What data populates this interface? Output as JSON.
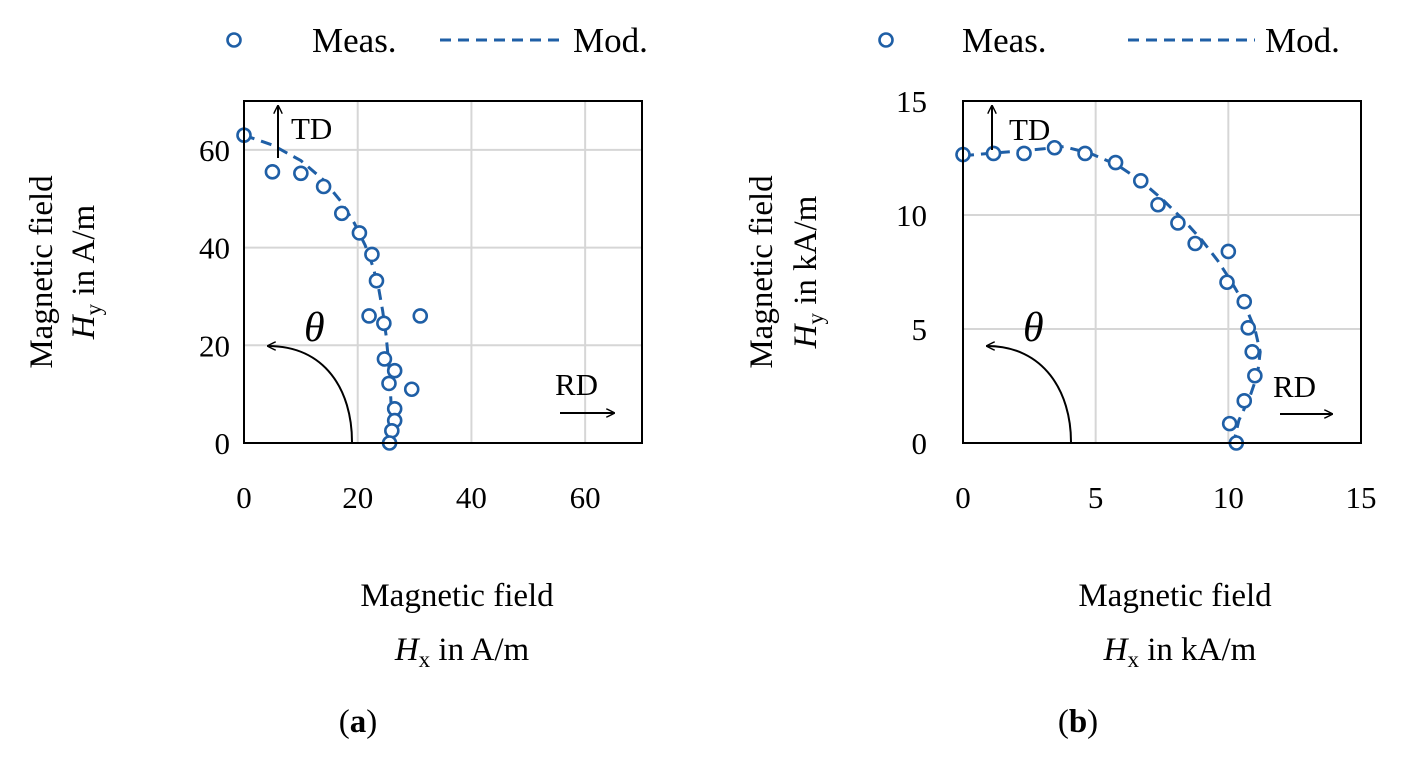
{
  "colors": {
    "series": "#1f5fa6",
    "grid": "#d6d6d6",
    "axis": "#000000"
  },
  "chart_data": [
    {
      "type": "scatter",
      "panel_label": "a",
      "xlabel_line1": "Magnetic field",
      "xlabel_sym": "H",
      "xlabel_sub": "x",
      "xlabel_unit": " in A/m",
      "ylabel_line1": "Magnetic field",
      "ylabel_sym": "H",
      "ylabel_sub": "y",
      "ylabel_unit": " in A/m",
      "xlim": [
        0,
        70
      ],
      "ylim": [
        0,
        70
      ],
      "xticks": [
        0,
        20,
        40,
        60
      ],
      "yticks": [
        0,
        20,
        40,
        60
      ],
      "grid": true,
      "legend": {
        "measured": "Meas.",
        "model": "Mod.",
        "position": "top"
      },
      "annotations": {
        "td": "TD",
        "rd": "RD",
        "theta": "θ"
      },
      "series": [
        {
          "name": "Meas.",
          "style": "markers",
          "points": [
            [
              0,
              63
            ],
            [
              5,
              55.5
            ],
            [
              10,
              55.2
            ],
            [
              14,
              52.5
            ],
            [
              17.2,
              47
            ],
            [
              20.3,
              43
            ],
            [
              22.5,
              38.6
            ],
            [
              23.3,
              33.2
            ],
            [
              22,
              26
            ],
            [
              24.6,
              24.5
            ],
            [
              31,
              26
            ],
            [
              24.7,
              17.2
            ],
            [
              25.5,
              12.2
            ],
            [
              26.5,
              14.8
            ],
            [
              29.5,
              11
            ],
            [
              26.5,
              7
            ],
            [
              26.5,
              4.6
            ],
            [
              26,
              2.5
            ],
            [
              25.6,
              0
            ]
          ]
        },
        {
          "name": "Mod.",
          "style": "dashed",
          "points": [
            [
              0,
              63
            ],
            [
              5,
              61
            ],
            [
              10,
              57.8
            ],
            [
              14,
              53.8
            ],
            [
              17,
              49.5
            ],
            [
              19.4,
              45
            ],
            [
              21.3,
              40.5
            ],
            [
              22.7,
              36
            ],
            [
              23.7,
              31.5
            ],
            [
              24.4,
              27
            ],
            [
              25,
              22
            ],
            [
              25.4,
              17
            ],
            [
              25.7,
              12
            ],
            [
              25.9,
              7
            ],
            [
              26,
              3
            ],
            [
              26,
              0
            ]
          ]
        }
      ]
    },
    {
      "type": "scatter",
      "panel_label": "b",
      "xlabel_line1": "Magnetic field",
      "xlabel_sym": "H",
      "xlabel_sub": "x",
      "xlabel_unit": " in kA/m",
      "ylabel_line1": "Magnetic field",
      "ylabel_sym": "H",
      "ylabel_sub": "y",
      "ylabel_unit": " in kA/m",
      "xlim": [
        0,
        15
      ],
      "ylim": [
        0,
        15
      ],
      "xticks": [
        0,
        5,
        10,
        15
      ],
      "yticks": [
        0,
        5,
        10,
        15
      ],
      "grid": true,
      "legend": {
        "measured": "Meas.",
        "model": "Mod.",
        "position": "top"
      },
      "annotations": {
        "td": "TD",
        "rd": "RD",
        "theta": "θ"
      },
      "series": [
        {
          "name": "Meas.",
          "style": "markers",
          "points": [
            [
              0,
              12.65
            ],
            [
              1.15,
              12.7
            ],
            [
              2.3,
              12.7
            ],
            [
              3.45,
              12.95
            ],
            [
              4.6,
              12.7
            ],
            [
              5.75,
              12.3
            ],
            [
              6.7,
              11.5
            ],
            [
              7.35,
              10.45
            ],
            [
              8.1,
              9.65
            ],
            [
              8.75,
              8.75
            ],
            [
              10,
              8.4
            ],
            [
              9.95,
              7.05
            ],
            [
              10.6,
              6.2
            ],
            [
              10.75,
              5.05
            ],
            [
              10.9,
              4
            ],
            [
              11,
              2.95
            ],
            [
              10.6,
              1.85
            ],
            [
              10.05,
              0.85
            ],
            [
              10.3,
              0
            ]
          ]
        },
        {
          "name": "Mod.",
          "style": "dashed",
          "points": [
            [
              0,
              12.6
            ],
            [
              1,
              12.7
            ],
            [
              2,
              12.8
            ],
            [
              3,
              12.9
            ],
            [
              3.8,
              13
            ],
            [
              4.8,
              12.7
            ],
            [
              5.8,
              12.2
            ],
            [
              6.7,
              11.5
            ],
            [
              7.5,
              10.7
            ],
            [
              8.3,
              9.8
            ],
            [
              9,
              8.9
            ],
            [
              9.6,
              8
            ],
            [
              10.1,
              7.1
            ],
            [
              10.6,
              6.1
            ],
            [
              11,
              5
            ],
            [
              11.2,
              4
            ],
            [
              11.1,
              3
            ],
            [
              10.8,
              2
            ],
            [
              10.4,
              1
            ],
            [
              10.2,
              0
            ]
          ]
        }
      ]
    }
  ]
}
